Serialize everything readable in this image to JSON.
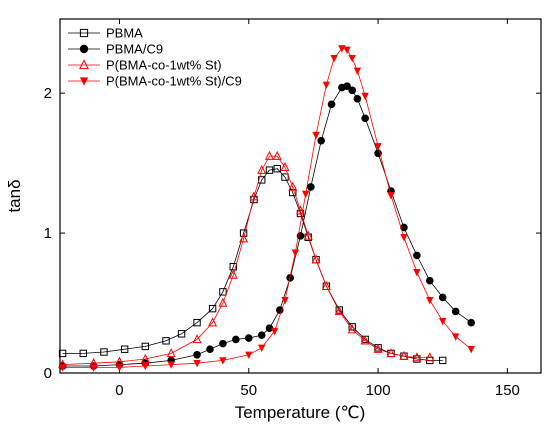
{
  "chart_data": {
    "type": "scatter",
    "title": "",
    "xlabel": "Temperature (℃)",
    "ylabel": "tanδ",
    "xlim": [
      -23,
      163
    ],
    "ylim": [
      0,
      2.53
    ],
    "xticks": [
      0,
      50,
      100,
      150
    ],
    "yticks": [
      0,
      1,
      2
    ],
    "grid": false,
    "legend_position": "top-left",
    "series": [
      {
        "name": "PBMA",
        "color": "#000000",
        "marker": "open-square",
        "x": [
          -22,
          -14,
          -6,
          2,
          10,
          18,
          24,
          30,
          36,
          40,
          44,
          48,
          52,
          55,
          58,
          61,
          64,
          67,
          70,
          73,
          76,
          80,
          85,
          90,
          95,
          100,
          105,
          110,
          115,
          120,
          125
        ],
        "y": [
          0.14,
          0.14,
          0.15,
          0.17,
          0.19,
          0.23,
          0.28,
          0.36,
          0.46,
          0.58,
          0.76,
          1.0,
          1.24,
          1.38,
          1.45,
          1.46,
          1.4,
          1.29,
          1.14,
          0.97,
          0.81,
          0.62,
          0.45,
          0.33,
          0.24,
          0.18,
          0.14,
          0.12,
          0.1,
          0.09,
          0.09
        ]
      },
      {
        "name": "PBMA/C9",
        "color": "#000000",
        "marker": "filled-circle",
        "x": [
          -22,
          -10,
          0,
          10,
          20,
          30,
          35,
          40,
          45,
          50,
          55,
          58,
          62,
          66,
          70,
          74,
          78,
          82,
          86,
          88,
          90,
          92,
          95,
          100,
          105,
          110,
          115,
          120,
          125,
          130,
          136
        ],
        "y": [
          0.05,
          0.05,
          0.06,
          0.07,
          0.09,
          0.13,
          0.17,
          0.21,
          0.24,
          0.25,
          0.27,
          0.32,
          0.45,
          0.68,
          0.98,
          1.33,
          1.66,
          1.92,
          2.04,
          2.05,
          2.02,
          1.96,
          1.82,
          1.57,
          1.3,
          1.04,
          0.84,
          0.66,
          0.54,
          0.44,
          0.36
        ]
      },
      {
        "name": "P(BMA-co-1wt% St)",
        "color": "#ff0000",
        "marker": "open-triangle-up",
        "x": [
          -22,
          -10,
          0,
          10,
          20,
          30,
          36,
          40,
          44,
          48,
          52,
          55,
          58,
          61,
          64,
          67,
          70,
          73,
          76,
          80,
          85,
          90,
          95,
          100,
          105,
          110,
          115,
          120
        ],
        "y": [
          0.06,
          0.07,
          0.08,
          0.1,
          0.14,
          0.24,
          0.36,
          0.5,
          0.7,
          0.96,
          1.26,
          1.45,
          1.55,
          1.55,
          1.47,
          1.33,
          1.16,
          0.98,
          0.81,
          0.62,
          0.44,
          0.31,
          0.23,
          0.17,
          0.14,
          0.12,
          0.11,
          0.11
        ]
      },
      {
        "name": "P(BMA-co-1wt% St)/C9",
        "color": "#ff0000",
        "marker": "filled-triangle-down",
        "x": [
          -22,
          -10,
          0,
          10,
          20,
          30,
          40,
          50,
          55,
          60,
          64,
          68,
          72,
          76,
          80,
          83,
          86,
          88,
          90,
          92,
          95,
          100,
          105,
          110,
          115,
          120,
          125,
          130,
          136
        ],
        "y": [
          0.04,
          0.04,
          0.04,
          0.05,
          0.06,
          0.07,
          0.09,
          0.13,
          0.18,
          0.3,
          0.52,
          0.86,
          1.28,
          1.7,
          2.06,
          2.25,
          2.32,
          2.31,
          2.25,
          2.16,
          1.98,
          1.62,
          1.27,
          0.97,
          0.72,
          0.52,
          0.37,
          0.26,
          0.17
        ]
      }
    ]
  }
}
